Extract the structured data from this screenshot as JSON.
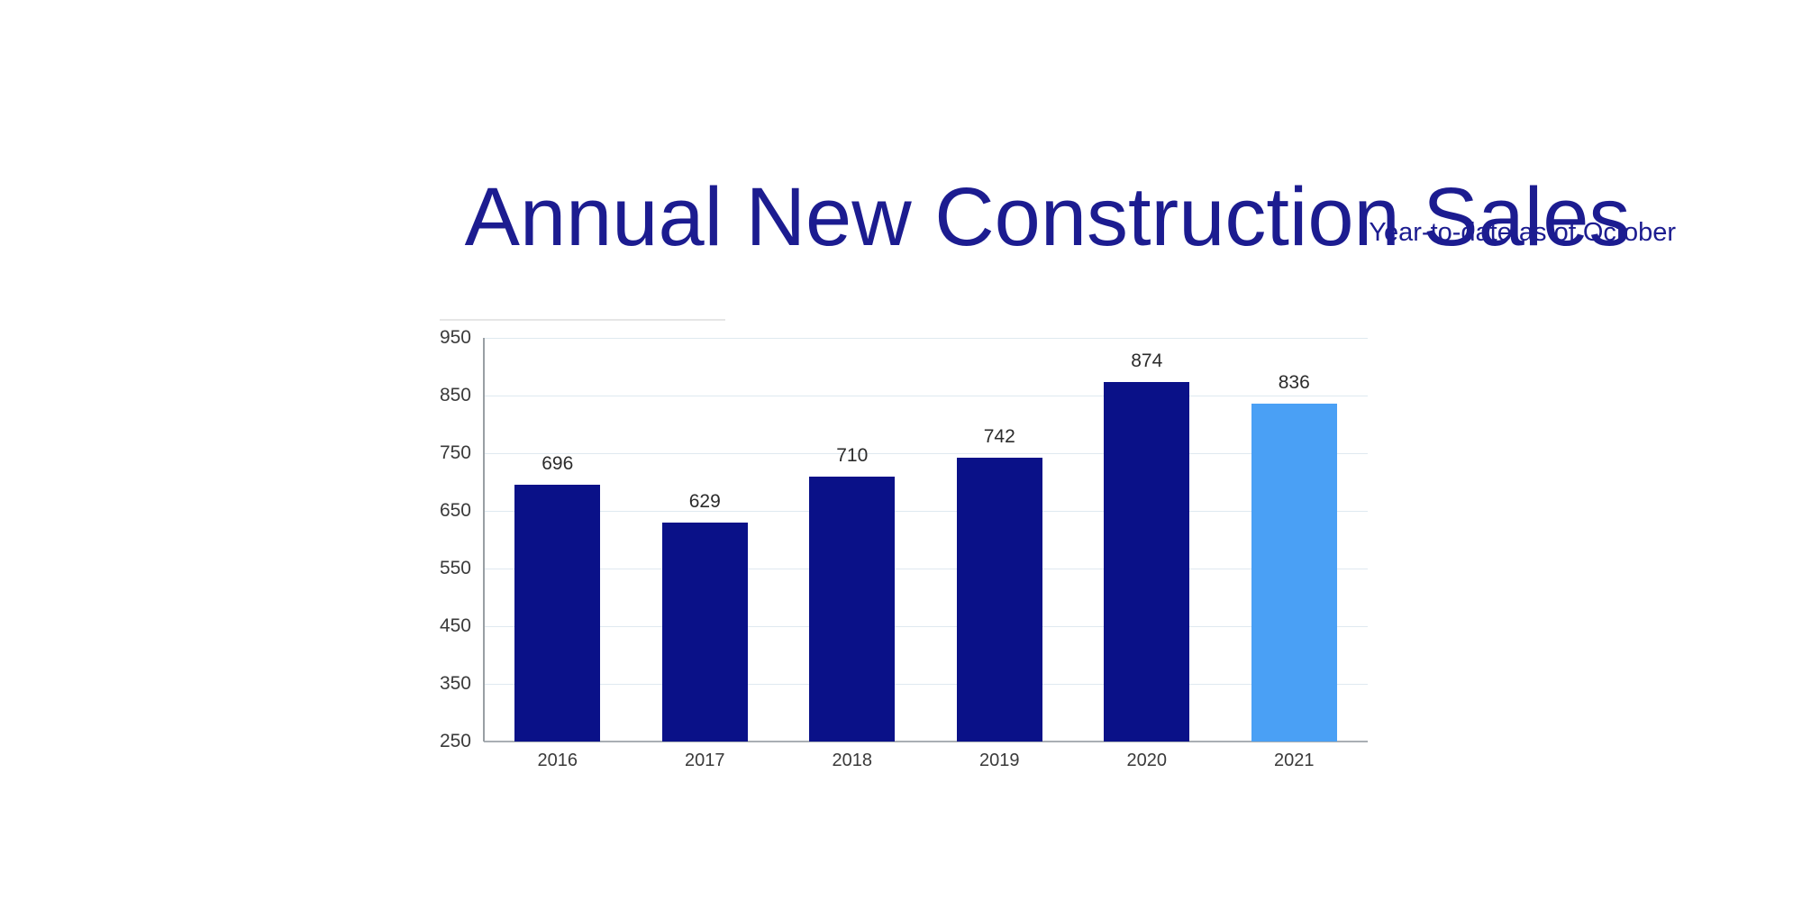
{
  "page": {
    "background": "#ffffff"
  },
  "header": {
    "title": "Annual New Construction Sales",
    "subtitle": "Year-to-date as of October"
  },
  "chart_data": {
    "type": "bar",
    "title": "Annual New Construction Sales",
    "subtitle": "Year-to-date as of October",
    "categories": [
      "2016",
      "2017",
      "2018",
      "2019",
      "2020",
      "2021"
    ],
    "values": [
      696,
      629,
      710,
      742,
      874,
      836
    ],
    "value_labels": [
      "696",
      "629",
      "710",
      "742",
      "874",
      "836"
    ],
    "highlight_index": 5,
    "ylim": [
      250,
      950
    ],
    "yticks": [
      250,
      350,
      450,
      550,
      650,
      750,
      850,
      950
    ],
    "ytick_labels": [
      "250",
      "350",
      "450",
      "550",
      "650",
      "750",
      "850",
      "950"
    ],
    "grid": true,
    "legend": "none",
    "xlabel": "",
    "ylabel": "",
    "colors": {
      "bar": "#0a1188",
      "bar_highlight": "#4aa0f5",
      "title_text": "#1c1c90",
      "subtitle_text": "#1c1c90",
      "axis_text": "#3a3a3a",
      "value_text": "#2b2b2b",
      "gridline": "#dfe9f0",
      "axis_line": "#999fa4",
      "baseline": "#a9afb4"
    }
  }
}
